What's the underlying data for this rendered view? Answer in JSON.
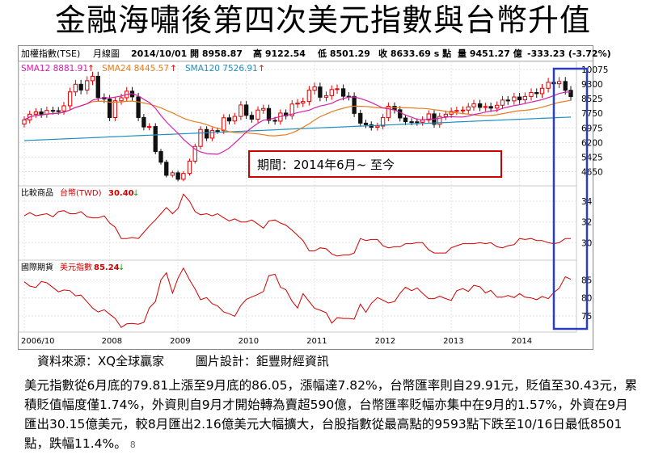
{
  "title": "金融海嘯後第四次美元指數與台幣升值",
  "header": {
    "index_name": "加權指數(TSE)",
    "period": "月線圖",
    "date": "2014/10/01",
    "open": "開 8958.87",
    "high": "高 9122.54",
    "low": "低 8501.29",
    "close": "收 8633.69 s 點",
    "volume": "量 9451.27 億",
    "change": "-333.23 (-3.72%)"
  },
  "sma": [
    {
      "label": "SMA12 8881.91",
      "color": "#d61fa8"
    },
    {
      "label": "SMA24 8445.57",
      "color": "#e87c1e"
    },
    {
      "label": "SMA120 7526.91",
      "color": "#1f8fbf"
    }
  ],
  "panel2": {
    "label": "比較商品",
    "item": "台幣(TWD)",
    "value": "30.40"
  },
  "panel3": {
    "label": "國際期貨",
    "item": "美元指數",
    "value": "85.24"
  },
  "annotation": "期間：2014年6月~ 至今",
  "source": {
    "data": "資料來源：XQ全球贏家",
    "design": "圖片設計：鉅豐財經資訊"
  },
  "paragraph": "美元指數從6月底的79.81上漲至9月底的86.05，漲幅達7.82%，台幣匯率則自29.91元，貶值至30.43元，累積貶值幅度僅1.74%，外資則自9月才開始轉為賣超590億，台幣匯率貶幅亦集中在9月的1.57%，外資在9月匯出30.15億美元，較8月匯出2.16億美元大幅擴大，台股指數從最高點的9593點下跌至10/16日最低8501點，跌幅11.4%。",
  "page_number": "8",
  "chart_data": [
    {
      "type": "candlestick",
      "yticks": [
        4650,
        5425,
        6200,
        6975,
        7750,
        8525,
        9300,
        10075
      ],
      "ylim": [
        3900,
        10500
      ],
      "xticks": [
        "2006/10",
        "2008",
        "2009",
        "2010",
        "2011",
        "2012",
        "2013",
        "2014"
      ],
      "x": [
        2006.75,
        2006.83,
        2006.92,
        2007.0,
        2007.08,
        2007.17,
        2007.25,
        2007.33,
        2007.42,
        2007.5,
        2007.58,
        2007.67,
        2007.75,
        2007.83,
        2007.92,
        2008.0,
        2008.08,
        2008.17,
        2008.25,
        2008.33,
        2008.42,
        2008.5,
        2008.58,
        2008.67,
        2008.75,
        2008.83,
        2008.92,
        2009.0,
        2009.08,
        2009.17,
        2009.25,
        2009.33,
        2009.42,
        2009.5,
        2009.58,
        2009.67,
        2009.75,
        2009.83,
        2009.92,
        2010.0,
        2010.08,
        2010.17,
        2010.25,
        2010.33,
        2010.42,
        2010.5,
        2010.58,
        2010.67,
        2010.75,
        2010.83,
        2010.92,
        2011.0,
        2011.08,
        2011.17,
        2011.25,
        2011.33,
        2011.42,
        2011.5,
        2011.58,
        2011.67,
        2011.75,
        2011.83,
        2011.92,
        2012.0,
        2012.08,
        2012.17,
        2012.25,
        2012.33,
        2012.42,
        2012.5,
        2012.58,
        2012.67,
        2012.75,
        2012.83,
        2012.92,
        2013.0,
        2013.08,
        2013.17,
        2013.25,
        2013.33,
        2013.42,
        2013.5,
        2013.58,
        2013.67,
        2013.75,
        2013.83,
        2013.92,
        2014.0,
        2014.08,
        2014.17,
        2014.25,
        2014.33,
        2014.42,
        2014.5,
        2014.58,
        2014.67,
        2014.75
      ],
      "close": [
        7400,
        7700,
        7823,
        7700,
        7900,
        7884,
        7875,
        8145,
        8883,
        9287,
        8982,
        9476,
        9711,
        8586,
        8506,
        7521,
        8412,
        8572,
        8920,
        8619,
        7524,
        7024,
        7046,
        5719,
        5153,
        4460,
        4591,
        4248,
        4557,
        5211,
        5992,
        6890,
        6432,
        6829,
        6826,
        7509,
        7340,
        7582,
        8188,
        7640,
        7436,
        7920,
        8004,
        7374,
        7329,
        7760,
        7616,
        8238,
        8287,
        8372,
        8973,
        9145,
        8600,
        8683,
        9008,
        9050,
        8652,
        8644,
        7741,
        7225,
        7142,
        7004,
        7072,
        7517,
        8121,
        7933,
        7501,
        7301,
        7297,
        7270,
        7398,
        7716,
        7166,
        7580,
        7700,
        7850,
        7900,
        7918,
        8093,
        8254,
        8062,
        8107,
        8022,
        8174,
        8450,
        8406,
        8612,
        8462,
        8639,
        8849,
        8791,
        9075,
        9393,
        9315,
        9436,
        8967,
        8633
      ]
    },
    {
      "type": "line",
      "series": [
        {
          "name": "台幣(TWD)",
          "values": [
            32.6,
            32.9,
            32.6,
            32.7,
            32.8,
            32.5,
            33.0,
            33.1,
            32.8,
            32.8,
            33.0,
            32.5,
            32.4,
            32.4,
            32.6,
            31.9,
            31.5,
            30.4,
            30.4,
            30.5,
            30.4,
            31.0,
            31.6,
            32.2,
            32.8,
            33.4,
            32.8,
            33.3,
            34.7,
            34.0,
            33.0,
            32.7,
            32.8,
            32.6,
            32.8,
            32.4,
            32.1,
            32.3,
            32.0,
            32.0,
            32.2,
            31.8,
            31.4,
            32.1,
            32.2,
            31.9,
            31.7,
            31.2,
            30.7,
            30.2,
            29.2,
            29.2,
            29.5,
            29.4,
            28.9,
            28.7,
            28.8,
            28.8,
            29.0,
            30.4,
            30.2,
            30.3,
            30.3,
            29.7,
            29.5,
            29.6,
            29.6,
            29.9,
            29.9,
            30.0,
            30.0,
            29.3,
            29.0,
            29.0,
            29.0,
            29.5,
            29.7,
            29.9,
            29.9,
            29.9,
            30.0,
            29.9,
            30.0,
            29.6,
            29.5,
            29.7,
            29.8,
            30.4,
            30.3,
            30.4,
            30.2,
            30.2,
            30.0,
            29.9,
            30.0,
            30.4,
            30.4
          ]
        }
      ],
      "yticks": [
        30,
        32,
        34
      ],
      "ylim": [
        28.3,
        35.5
      ]
    },
    {
      "type": "line",
      "series": [
        {
          "name": "美元指數",
          "values": [
            84.5,
            83.3,
            82.9,
            84.6,
            84.2,
            82.9,
            81.7,
            82.2,
            82.0,
            80.6,
            80.8,
            78.9,
            77.2,
            76.1,
            76.7,
            75.5,
            74.3,
            71.8,
            72.8,
            72.9,
            72.7,
            73.2,
            77.2,
            79.0,
            85.0,
            87.0,
            81.3,
            85.5,
            88.3,
            85.0,
            82.5,
            79.5,
            80.1,
            78.4,
            77.8,
            76.1,
            75.6,
            74.9,
            77.9,
            79.6,
            80.3,
            81.0,
            81.8,
            86.2,
            86.6,
            83.0,
            82.3,
            79.1,
            77.2,
            81.2,
            79.0,
            77.1,
            76.6,
            75.9,
            73.0,
            74.5,
            74.3,
            74.3,
            74.1,
            78.3,
            76.0,
            78.5,
            80.1,
            79.4,
            78.6,
            79.0,
            81.3,
            83.0,
            82.0,
            82.8,
            81.3,
            79.8,
            79.8,
            80.5,
            79.8,
            79.3,
            82.0,
            82.6,
            81.8,
            83.5,
            83.1,
            81.4,
            82.1,
            80.2,
            80.2,
            80.7,
            80.1,
            81.2,
            80.2,
            80.0,
            79.5,
            80.4,
            79.8,
            81.5,
            82.7,
            85.9,
            85.2
          ]
        }
      ],
      "yticks": [
        75,
        80,
        85
      ],
      "ylim": [
        70.5,
        90.5
      ]
    }
  ]
}
